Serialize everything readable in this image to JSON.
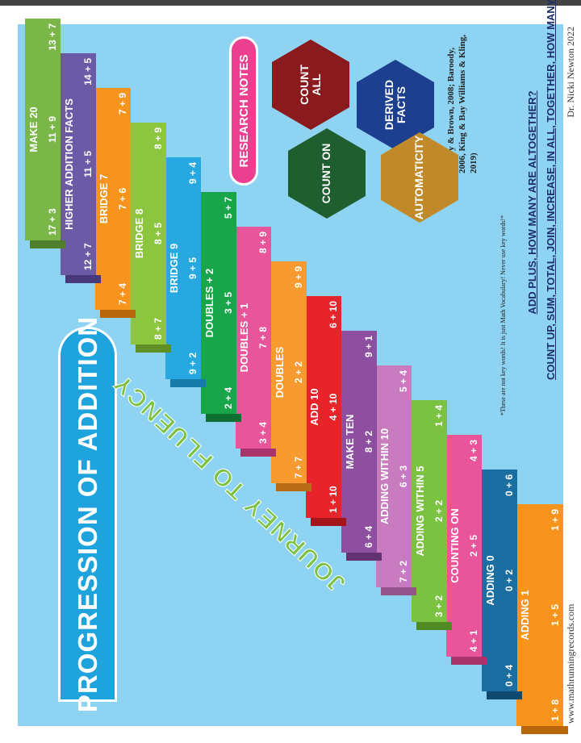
{
  "title": "PROGRESSION OF ADDITION",
  "subtitle": "JOURNEY TO FLUENCY",
  "steps": [
    {
      "name": "ADDING 1",
      "facts": [
        "1 + 8",
        "1 + 5",
        "1 + 9"
      ]
    },
    {
      "name": "ADDING 0",
      "facts": [
        "0 + 4",
        "0 + 2",
        "0 + 6"
      ]
    },
    {
      "name": "COUNTING ON",
      "facts": [
        "4 + 1",
        "2 + 5",
        "4 + 3"
      ]
    },
    {
      "name": "ADDING WITHIN 5",
      "facts": [
        "3 + 2",
        "2 + 2",
        "1 + 4"
      ]
    },
    {
      "name": "ADDING WITHIN 10",
      "facts": [
        "7 + 2",
        "6 + 3",
        "5 + 4"
      ]
    },
    {
      "name": "MAKE TEN",
      "facts": [
        "6 + 4",
        "8 + 2",
        "9 + 1"
      ]
    },
    {
      "name": "ADD 10",
      "facts": [
        "1 + 10",
        "4 + 10",
        "6 + 10"
      ]
    },
    {
      "name": "DOUBLES",
      "facts": [
        "7 + 7",
        "2 + 2",
        "9 + 9"
      ]
    },
    {
      "name": "DOUBLES + 1",
      "facts": [
        "3 + 4",
        "7 + 8",
        "8 + 9"
      ]
    },
    {
      "name": "DOUBLES + 2",
      "facts": [
        "2 + 4",
        "3 + 5",
        "5 + 7"
      ]
    },
    {
      "name": "BRIDGE 9",
      "facts": [
        "9 + 2",
        "9 + 5",
        "9 + 4"
      ]
    },
    {
      "name": "BRIDGE 8",
      "facts": [
        "8 + 7",
        "8 + 5",
        "8 + 9"
      ]
    },
    {
      "name": "BRIDGE 7",
      "facts": [
        "7 + 4",
        "7 + 6",
        "7 + 9"
      ]
    },
    {
      "name": "HIGHER ADDITION FACTS",
      "facts": [
        "12 + 7",
        "11 + 5",
        "14 + 5"
      ]
    },
    {
      "name": "MAKE 20",
      "facts": [
        "17 + 3",
        "11 + 9",
        "13 + 7"
      ]
    }
  ],
  "research": {
    "label": "RESEARCH NOTES",
    "strategies": [
      "COUNT ALL",
      "DERIVED FACTS",
      "COUNT ON",
      "AUTOMATICITY"
    ],
    "citation": "(Henry & Brown, 2008; Baroody, 2006, King & Bay Williams & Kling, 2019)"
  },
  "vocabulary": {
    "note": "*These are not key words! It is just Math Vocabulary! Never use key words!*",
    "line1": "ADD PLUS, HOW MANY ARE ALTOGETHER?",
    "line2": "COUNT UP, SUM, TOTAL, JOIN, INCREASE, IN ALL, TOGETHER, HOW MANY"
  },
  "footer": {
    "website": "www.mathrunningrecords.com",
    "author": "Dr. Nicki Newton 2022"
  }
}
